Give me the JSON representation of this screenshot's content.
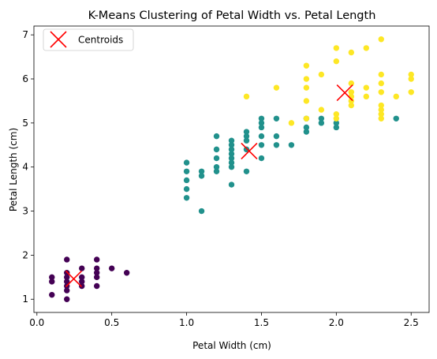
{
  "chart_data": {
    "type": "scatter",
    "title": "K-Means Clustering of Petal Width vs. Petal Length",
    "xlabel": "Petal Width (cm)",
    "ylabel": "Petal Length (cm)",
    "xlim": [
      -0.02,
      2.62
    ],
    "ylim": [
      0.7,
      7.2
    ],
    "xticks": [
      0.0,
      0.5,
      1.0,
      1.5,
      2.0,
      2.5
    ],
    "xtick_labels": [
      "0.0",
      "0.5",
      "1.0",
      "1.5",
      "2.0",
      "2.5"
    ],
    "yticks": [
      1,
      2,
      3,
      4,
      5,
      6,
      7
    ],
    "ytick_labels": [
      "1",
      "2",
      "3",
      "4",
      "5",
      "6",
      "7"
    ],
    "grid": false,
    "legend": {
      "position": "top-left",
      "entries": [
        "Centroids"
      ]
    },
    "cluster_colors": [
      "#440154",
      "#21918c",
      "#fde725"
    ],
    "centroid_color": "#ff0000",
    "series": [
      {
        "cluster": 0,
        "color": "#440154",
        "points": [
          [
            0.1,
            1.5
          ],
          [
            0.1,
            1.4
          ],
          [
            0.1,
            1.1
          ],
          [
            0.2,
            1.9
          ],
          [
            0.2,
            1.6
          ],
          [
            0.2,
            1.5
          ],
          [
            0.2,
            1.4
          ],
          [
            0.2,
            1.3
          ],
          [
            0.2,
            1.2
          ],
          [
            0.2,
            1.0
          ],
          [
            0.3,
            1.7
          ],
          [
            0.3,
            1.5
          ],
          [
            0.3,
            1.4
          ],
          [
            0.3,
            1.3
          ],
          [
            0.4,
            1.9
          ],
          [
            0.4,
            1.7
          ],
          [
            0.4,
            1.6
          ],
          [
            0.4,
            1.5
          ],
          [
            0.4,
            1.3
          ],
          [
            0.5,
            1.7
          ],
          [
            0.6,
            1.6
          ]
        ]
      },
      {
        "cluster": 1,
        "color": "#21918c",
        "points": [
          [
            1.0,
            4.1
          ],
          [
            1.0,
            3.9
          ],
          [
            1.0,
            3.7
          ],
          [
            1.0,
            3.5
          ],
          [
            1.0,
            3.3
          ],
          [
            1.1,
            3.9
          ],
          [
            1.1,
            3.8
          ],
          [
            1.1,
            3.0
          ],
          [
            1.2,
            4.7
          ],
          [
            1.2,
            4.4
          ],
          [
            1.2,
            4.2
          ],
          [
            1.2,
            4.0
          ],
          [
            1.2,
            3.9
          ],
          [
            1.3,
            4.6
          ],
          [
            1.3,
            4.5
          ],
          [
            1.3,
            4.4
          ],
          [
            1.3,
            4.3
          ],
          [
            1.3,
            4.2
          ],
          [
            1.3,
            4.1
          ],
          [
            1.3,
            4.0
          ],
          [
            1.3,
            3.6
          ],
          [
            1.4,
            4.8
          ],
          [
            1.4,
            4.7
          ],
          [
            1.4,
            4.6
          ],
          [
            1.4,
            4.4
          ],
          [
            1.4,
            3.9
          ],
          [
            1.5,
            5.1
          ],
          [
            1.5,
            5.0
          ],
          [
            1.5,
            4.9
          ],
          [
            1.5,
            4.7
          ],
          [
            1.5,
            4.5
          ],
          [
            1.5,
            4.2
          ],
          [
            1.6,
            5.1
          ],
          [
            1.6,
            4.7
          ],
          [
            1.6,
            4.5
          ],
          [
            1.7,
            4.5
          ],
          [
            1.8,
            5.1
          ],
          [
            1.8,
            4.9
          ],
          [
            1.8,
            4.8
          ],
          [
            1.9,
            5.1
          ],
          [
            1.9,
            5.0
          ],
          [
            2.0,
            5.0
          ],
          [
            2.0,
            4.9
          ],
          [
            2.4,
            5.1
          ]
        ]
      },
      {
        "cluster": 2,
        "color": "#fde725",
        "points": [
          [
            1.4,
            5.6
          ],
          [
            1.6,
            5.8
          ],
          [
            1.7,
            5.0
          ],
          [
            1.8,
            6.3
          ],
          [
            1.8,
            6.0
          ],
          [
            1.8,
            5.8
          ],
          [
            1.8,
            5.5
          ],
          [
            1.8,
            5.1
          ],
          [
            1.9,
            6.1
          ],
          [
            1.9,
            5.3
          ],
          [
            2.0,
            6.7
          ],
          [
            2.0,
            6.4
          ],
          [
            2.0,
            5.2
          ],
          [
            2.0,
            5.1
          ],
          [
            2.1,
            6.6
          ],
          [
            2.1,
            5.9
          ],
          [
            2.1,
            5.7
          ],
          [
            2.1,
            5.6
          ],
          [
            2.1,
            5.5
          ],
          [
            2.1,
            5.4
          ],
          [
            2.2,
            6.7
          ],
          [
            2.2,
            5.8
          ],
          [
            2.2,
            5.6
          ],
          [
            2.3,
            6.9
          ],
          [
            2.3,
            6.1
          ],
          [
            2.3,
            5.9
          ],
          [
            2.3,
            5.7
          ],
          [
            2.3,
            5.4
          ],
          [
            2.3,
            5.3
          ],
          [
            2.3,
            5.2
          ],
          [
            2.3,
            5.1
          ],
          [
            2.4,
            5.6
          ],
          [
            2.5,
            6.1
          ],
          [
            2.5,
            6.0
          ],
          [
            2.5,
            5.7
          ]
        ]
      }
    ],
    "centroids": {
      "name": "Centroids",
      "marker": "x",
      "points": [
        [
          0.246,
          1.462
        ],
        [
          1.418,
          4.364
        ],
        [
          2.057,
          5.686
        ]
      ]
    }
  }
}
